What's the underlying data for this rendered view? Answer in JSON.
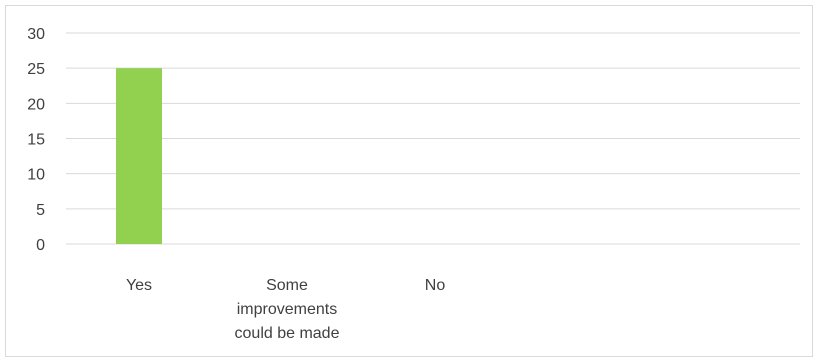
{
  "chart_data": {
    "type": "bar",
    "title": "",
    "xlabel": "",
    "ylabel": "",
    "categories": [
      "Yes",
      "Some improvements could be made",
      "No"
    ],
    "category_label_lines": [
      [
        "Yes"
      ],
      [
        "Some",
        "improvements",
        "could be made"
      ],
      [
        "No"
      ]
    ],
    "series": [
      {
        "values": [
          25,
          0,
          0
        ],
        "color": "#92d050"
      }
    ],
    "ylim": [
      0,
      30
    ],
    "yticks": [
      0,
      5,
      10,
      15,
      20,
      25,
      30
    ],
    "grid": true,
    "legend": "none",
    "gridline_color": "#d9d9d9"
  }
}
